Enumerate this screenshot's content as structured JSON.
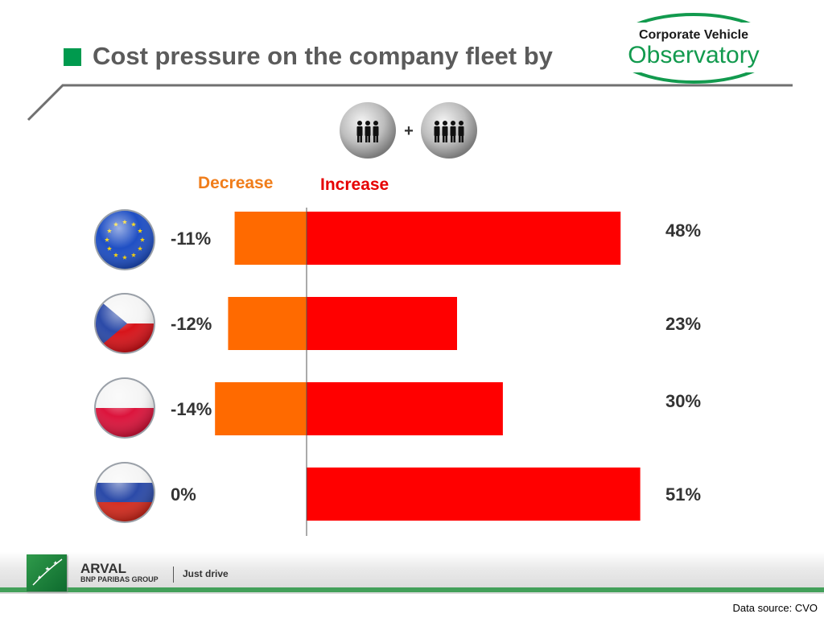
{
  "title": "Cost pressure on the company fleet by",
  "logo": {
    "line1": "Corporate Vehicle",
    "line2": "Observatory"
  },
  "people_plus": "+",
  "chart_data": {
    "type": "bar",
    "orientation": "horizontal",
    "stacked": "diverging",
    "categories": [
      "European Union",
      "Czech Republic",
      "Poland",
      "Russia"
    ],
    "series": [
      {
        "name": "Decrease",
        "values": [
          -11,
          -12,
          -14,
          0
        ],
        "labels": [
          "-11%",
          "-12%",
          "-14%",
          "0%"
        ],
        "color": "#ff6a00"
      },
      {
        "name": "Increase",
        "values": [
          48,
          23,
          30,
          51
        ],
        "labels": [
          "48%",
          "23%",
          "30%",
          "51%"
        ],
        "color": "#ff0000"
      }
    ],
    "xlim": [
      -14,
      51
    ],
    "grid": false,
    "legend": "top"
  },
  "footer": {
    "brand": "ARVAL",
    "group": "BNP PARIBAS GROUP",
    "tagline": "Just drive"
  },
  "source": "Data source: CVO"
}
